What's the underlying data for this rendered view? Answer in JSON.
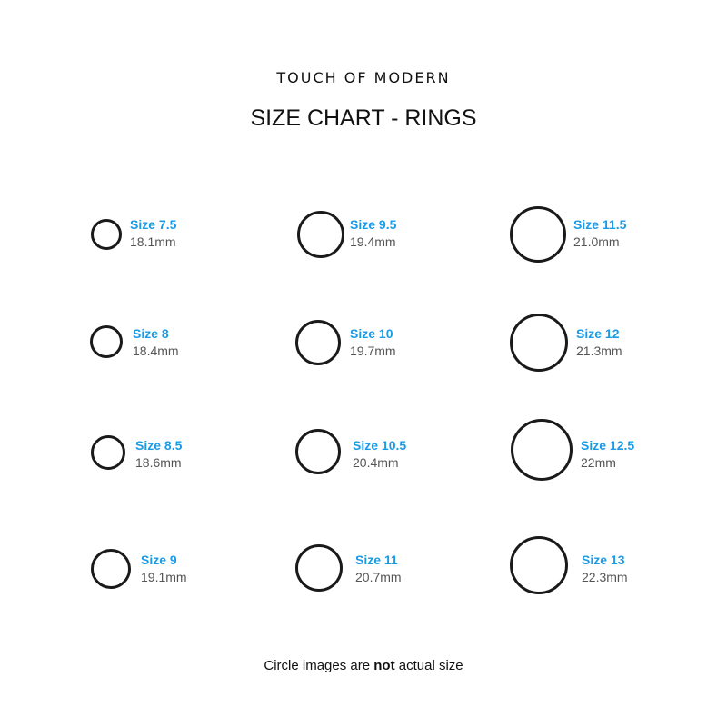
{
  "brand": "TOUCH OF MODERN",
  "title": "SIZE CHART - RINGS",
  "rings": [
    {
      "size": "Size 7.5",
      "mm": "18.1mm"
    },
    {
      "size": "Size 9.5",
      "mm": "19.4mm"
    },
    {
      "size": "Size 11.5",
      "mm": "21.0mm"
    },
    {
      "size": "Size 8",
      "mm": "18.4mm"
    },
    {
      "size": "Size 10",
      "mm": "19.7mm"
    },
    {
      "size": "Size 12",
      "mm": "21.3mm"
    },
    {
      "size": "Size 8.5",
      "mm": "18.6mm"
    },
    {
      "size": "Size 10.5",
      "mm": "20.4mm"
    },
    {
      "size": "Size 12.5",
      "mm": "22mm"
    },
    {
      "size": "Size 9",
      "mm": "19.1mm"
    },
    {
      "size": "Size 11",
      "mm": "20.7mm"
    },
    {
      "size": "Size 13",
      "mm": "22.3mm"
    }
  ],
  "note": {
    "prefix": "Circle images are ",
    "bold": "not",
    "suffix": " actual size"
  },
  "colors": {
    "size_label": "#1a9be6",
    "mm_label": "#555555",
    "ring": "#1a1a1a"
  }
}
